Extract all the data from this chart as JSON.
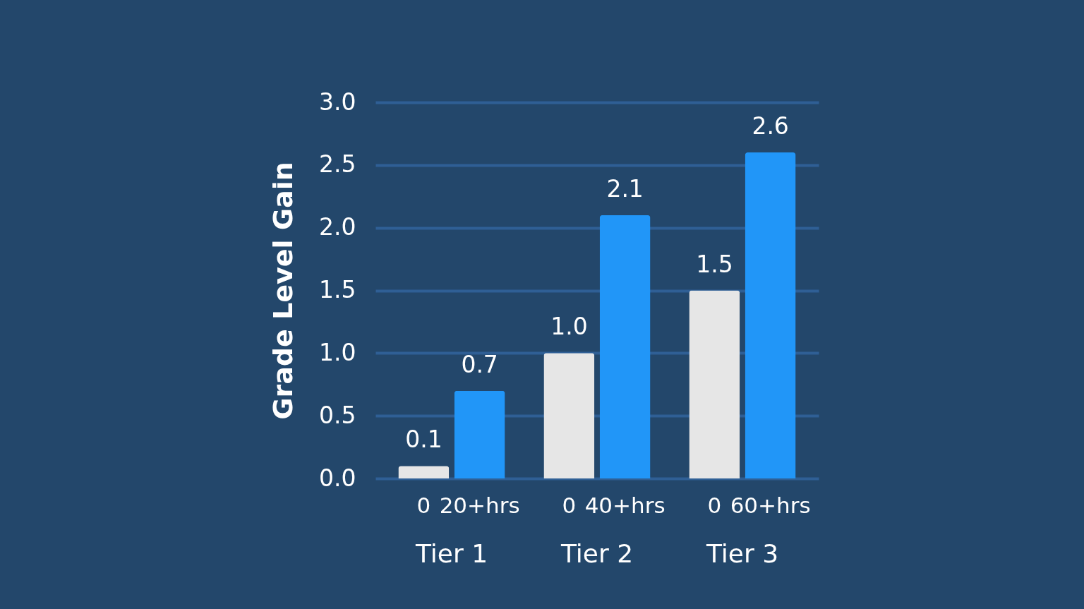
{
  "chart_data": {
    "type": "bar",
    "ylabel": "Grade Level Gain",
    "categories": [
      "0",
      "20+hrs",
      "0",
      "40+hrs",
      "0",
      "60+hrs"
    ],
    "values": [
      0.1,
      0.7,
      1.0,
      2.1,
      1.5,
      2.6
    ],
    "colors": [
      "#e6e6e6",
      "#2196f8",
      "#e6e6e6",
      "#2196f8",
      "#e6e6e6",
      "#2196f8"
    ],
    "value_labels": [
      "0.1",
      "0.7",
      "1.0",
      "2.1",
      "1.5",
      "2.6"
    ],
    "ylim": [
      0,
      3
    ],
    "yticks": [
      {
        "value": 0,
        "label": "0.0"
      },
      0.5,
      {
        "value": 1,
        "label": "1.0"
      },
      1.5,
      {
        "value": 2,
        "label": "2.0"
      },
      2.5,
      {
        "value": 3,
        "label": "3.0"
      }
    ],
    "grid": "y",
    "annotations": [
      "Tier 1",
      "Tier 2",
      "Tier 3"
    ]
  }
}
